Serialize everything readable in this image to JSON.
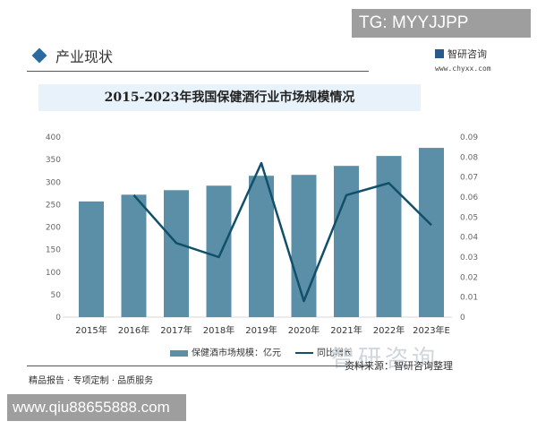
{
  "overlay": {
    "tg_label": "TG: MYYJJPP",
    "url_label": "www.qiu88655888.com"
  },
  "header": {
    "section_title": "产业现状",
    "brand_name": "智研咨询",
    "brand_url": "www.chyxx.com"
  },
  "chart_title": "2015-2023年我国保健酒行业市场规模情况",
  "legend": {
    "bar_label": "保健酒市场规模：亿元",
    "line_label": "同比增长"
  },
  "footer": {
    "left": "精品报告 · 专项定制 · 品质服务",
    "source": "资料来源：智研咨询整理",
    "watermark": "智研咨询"
  },
  "colors": {
    "bar": "#5b8fa8",
    "line": "#124f6a",
    "title_band": "#e8f2fa"
  },
  "chart_data": {
    "type": "bar",
    "title": "2015-2023年我国保健酒行业市场规模情况",
    "categories": [
      "2015年",
      "2016年",
      "2017年",
      "2018年",
      "2019年",
      "2020年",
      "2021年",
      "2022年",
      "2023年E"
    ],
    "series": [
      {
        "name": "保健酒市场规模：亿元",
        "type": "bar",
        "axis": "left",
        "values": [
          257,
          272,
          282,
          292,
          314,
          316,
          336,
          358,
          376
        ]
      },
      {
        "name": "同比增长",
        "type": "line",
        "axis": "right",
        "values": [
          null,
          0.061,
          0.037,
          0.03,
          0.077,
          0.008,
          0.061,
          0.067,
          0.046
        ]
      }
    ],
    "ylim_left": [
      0,
      400
    ],
    "yticks_left": [
      0,
      50,
      100,
      150,
      200,
      250,
      300,
      350,
      400
    ],
    "ylim_right": [
      0,
      0.09
    ],
    "yticks_right": [
      "0",
      "0.01",
      "0.02",
      "0.03",
      "0.04",
      "0.05",
      "0.06",
      "0.07",
      "0.08",
      "0.09"
    ],
    "grid": false,
    "legend_position": "bottom"
  }
}
